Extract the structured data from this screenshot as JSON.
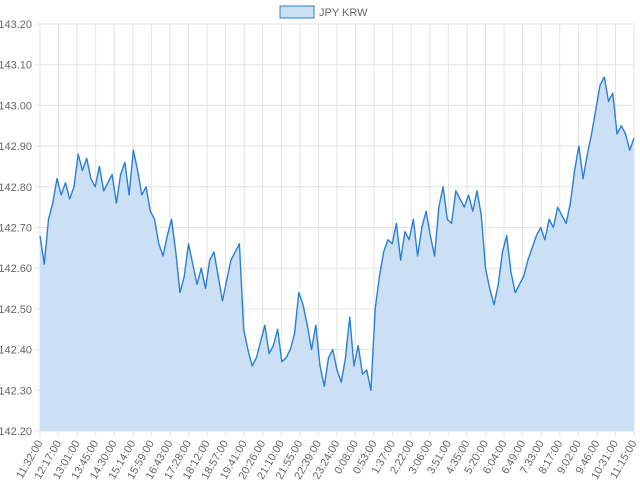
{
  "chart_data": {
    "type": "area",
    "legend": {
      "label": "JPY KRW",
      "position": "top"
    },
    "colors": {
      "line": "#2a7fd4",
      "fill": "#cce0f5",
      "grid": "#e3e3e3",
      "text": "#666666"
    },
    "grid": true,
    "ylim": [
      142.2,
      143.2
    ],
    "y_ticks": [
      "143.20",
      "143.10",
      "143.00",
      "142.90",
      "142.80",
      "142.70",
      "142.60",
      "142.50",
      "142.40",
      "142.30",
      "142.20"
    ],
    "x_ticks": [
      "11:32:00",
      "12:17:00",
      "13:01:00",
      "13:45:00",
      "14:30:00",
      "15:14:00",
      "15:59:00",
      "16:43:00",
      "17:28:00",
      "18:12:00",
      "18:57:00",
      "19:41:00",
      "20:26:00",
      "21:10:00",
      "21:55:00",
      "22:39:00",
      "23:24:00",
      "0:08:00",
      "0:53:00",
      "1:37:00",
      "2:22:00",
      "3:06:00",
      "3:51:00",
      "4:35:00",
      "5:20:00",
      "6:04:00",
      "6:49:00",
      "7:33:00",
      "8:17:00",
      "9:02:00",
      "9:46:00",
      "10:31:00",
      "11:15:00"
    ],
    "x_start": "11:32:00",
    "x_interval_minutes": 44.6,
    "values": [
      142.68,
      142.61,
      142.72,
      142.76,
      142.82,
      142.78,
      142.81,
      142.77,
      142.8,
      142.88,
      142.84,
      142.87,
      142.82,
      142.8,
      142.85,
      142.79,
      142.81,
      142.83,
      142.76,
      142.83,
      142.86,
      142.78,
      142.89,
      142.84,
      142.78,
      142.8,
      142.74,
      142.72,
      142.66,
      142.63,
      142.68,
      142.72,
      142.64,
      142.54,
      142.58,
      142.66,
      142.61,
      142.56,
      142.6,
      142.55,
      142.62,
      142.64,
      142.58,
      142.52,
      142.57,
      142.62,
      142.64,
      142.66,
      142.45,
      142.4,
      142.36,
      142.38,
      142.42,
      142.46,
      142.39,
      142.41,
      142.45,
      142.37,
      142.38,
      142.4,
      142.44,
      142.54,
      142.51,
      142.46,
      142.4,
      142.46,
      142.36,
      142.31,
      142.38,
      142.4,
      142.35,
      142.32,
      142.38,
      142.48,
      142.36,
      142.41,
      142.34,
      142.35,
      142.3,
      142.5,
      142.58,
      142.64,
      142.67,
      142.66,
      142.71,
      142.62,
      142.69,
      142.67,
      142.72,
      142.63,
      142.7,
      142.74,
      142.68,
      142.63,
      142.75,
      142.8,
      142.72,
      142.71,
      142.79,
      142.77,
      142.75,
      142.78,
      142.74,
      142.79,
      142.73,
      142.6,
      142.55,
      142.51,
      142.56,
      142.64,
      142.68,
      142.59,
      142.54,
      142.56,
      142.58,
      142.62,
      142.65,
      142.68,
      142.7,
      142.67,
      142.72,
      142.7,
      142.75,
      142.73,
      142.71,
      142.76,
      142.84,
      142.9,
      142.82,
      142.88,
      142.93,
      142.99,
      143.05,
      143.07,
      143.01,
      143.03,
      142.93,
      142.95,
      142.93,
      142.89,
      142.92
    ]
  }
}
